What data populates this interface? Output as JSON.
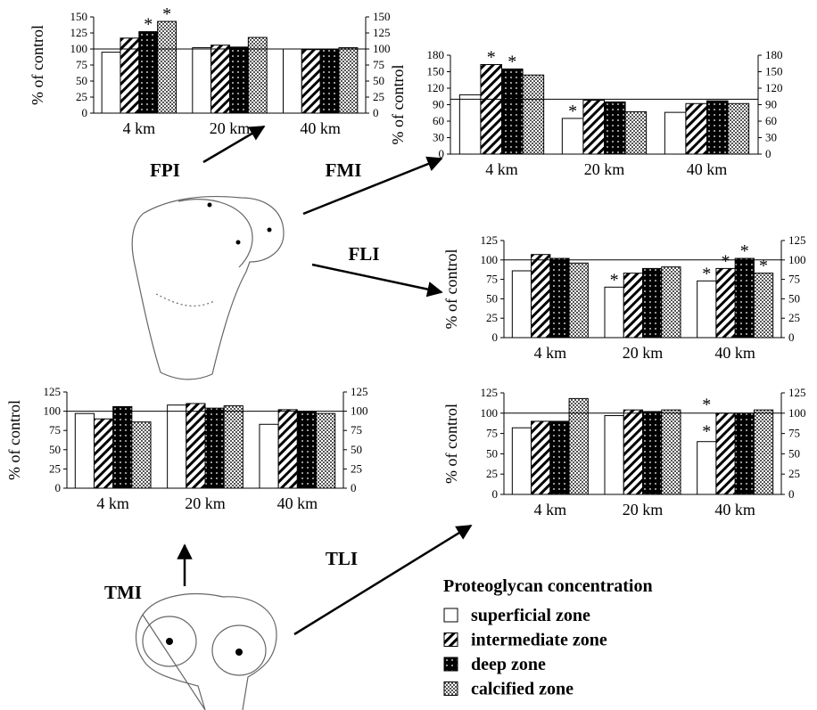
{
  "chart_data": [
    {
      "type": "bar",
      "label": "FPI",
      "ylabel": "% of control",
      "categories": [
        "4 km",
        "20 km",
        "40 km"
      ],
      "ylim": [
        0,
        150
      ],
      "yticks": [
        0,
        25,
        50,
        75,
        100,
        125,
        150
      ],
      "reference_line": 100,
      "series": [
        {
          "values": [
            95,
            102,
            100
          ]
        },
        {
          "values": [
            117,
            106,
            99
          ]
        },
        {
          "values": [
            127,
            103,
            100
          ],
          "value_labels": [
            "*",
            null,
            null
          ]
        },
        {
          "values": [
            143,
            118,
            102
          ],
          "value_labels": [
            "*",
            null,
            null
          ]
        }
      ]
    },
    {
      "type": "bar",
      "label": "FMI",
      "ylabel": "% of control",
      "categories": [
        "4 km",
        "20 km",
        "40 km"
      ],
      "ylim": [
        0,
        180
      ],
      "yticks": [
        0,
        30,
        60,
        90,
        120,
        150,
        180
      ],
      "reference_line": 100,
      "series": [
        {
          "values": [
            108,
            65,
            76
          ],
          "value_labels": [
            null,
            "*",
            null
          ]
        },
        {
          "values": [
            163,
            98,
            92
          ],
          "value_labels": [
            "*",
            null,
            null
          ]
        },
        {
          "values": [
            155,
            95,
            97
          ],
          "value_labels": [
            "*",
            null,
            null
          ]
        },
        {
          "values": [
            144,
            77,
            92
          ]
        }
      ]
    },
    {
      "type": "bar",
      "label": "FLI",
      "ylabel": "% of control",
      "categories": [
        "4 km",
        "20 km",
        "40 km"
      ],
      "ylim": [
        0,
        125
      ],
      "yticks": [
        0,
        25,
        50,
        75,
        100,
        125
      ],
      "reference_line": 100,
      "series": [
        {
          "values": [
            86,
            65,
            73
          ],
          "value_labels": [
            null,
            "*",
            "*"
          ]
        },
        {
          "values": [
            107,
            83,
            89
          ],
          "value_labels": [
            null,
            null,
            "*"
          ]
        },
        {
          "values": [
            102,
            89,
            102
          ],
          "value_labels": [
            null,
            null,
            "*"
          ]
        },
        {
          "values": [
            96,
            91,
            83
          ],
          "value_labels": [
            null,
            null,
            "*"
          ]
        }
      ]
    },
    {
      "type": "bar",
      "label": "TMI",
      "ylabel": "% of control",
      "categories": [
        "4 km",
        "20 km",
        "40 km"
      ],
      "ylim": [
        0,
        125
      ],
      "yticks": [
        0,
        25,
        50,
        75,
        100,
        125
      ],
      "reference_line": 100,
      "series": [
        {
          "values": [
            97,
            108,
            83
          ]
        },
        {
          "values": [
            90,
            110,
            102
          ]
        },
        {
          "values": [
            106,
            104,
            100
          ]
        },
        {
          "values": [
            86,
            107,
            97
          ]
        }
      ]
    },
    {
      "type": "bar",
      "label": "TLI",
      "ylabel": "% of control",
      "categories": [
        "4 km",
        "20 km",
        "40 km"
      ],
      "ylim": [
        0,
        125
      ],
      "yticks": [
        0,
        25,
        50,
        75,
        100,
        125
      ],
      "reference_line": 100,
      "series": [
        {
          "values": [
            82,
            97,
            65
          ],
          "value_labels": [
            null,
            null,
            [
              "*",
              "*"
            ]
          ]
        },
        {
          "values": [
            90,
            104,
            100
          ]
        },
        {
          "values": [
            90,
            102,
            100
          ]
        },
        {
          "values": [
            118,
            104,
            104
          ]
        }
      ]
    }
  ],
  "legend": {
    "title": "Proteoglycan concentration",
    "series": [
      {
        "name": "superficial zone",
        "fill": "white"
      },
      {
        "name": "intermediate zone",
        "fill": "hatch"
      },
      {
        "name": "deep zone",
        "fill": "dots"
      },
      {
        "name": "calcified zone",
        "fill": "checker"
      }
    ]
  }
}
